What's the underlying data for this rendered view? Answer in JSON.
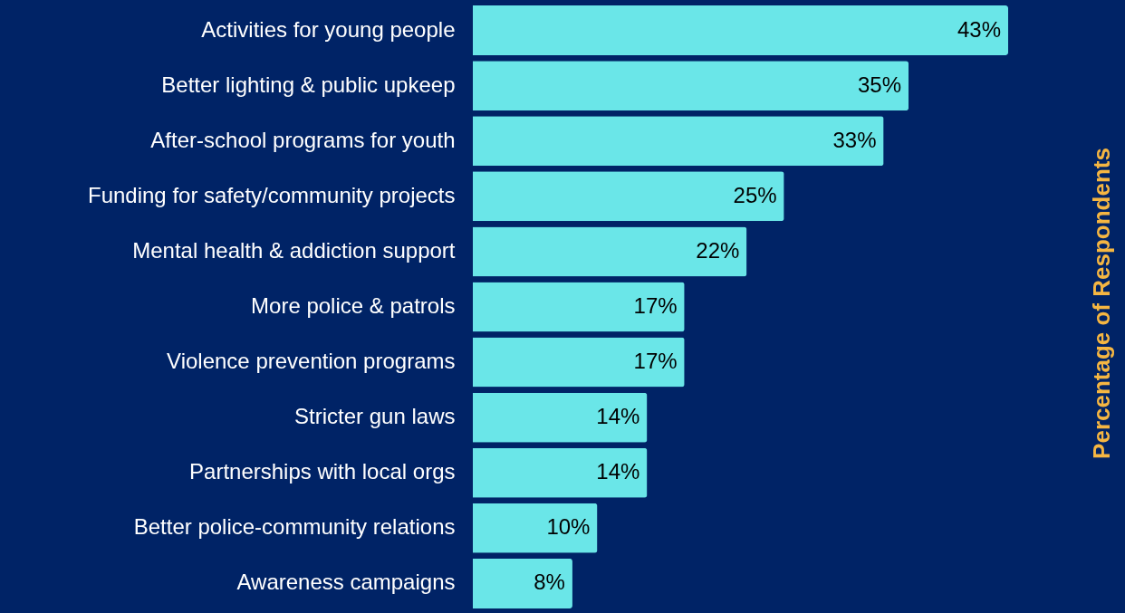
{
  "chart_data": {
    "type": "bar",
    "orientation": "horizontal",
    "relative": false,
    "y2label": "Percentage of Respondents",
    "categories": [
      "Activities for young people",
      "Better lighting & public upkeep",
      "After-school programs for youth",
      "Funding for safety/community projects",
      "Mental health & addiction support",
      "More police & patrols",
      "Violence prevention programs",
      "Stricter gun laws",
      "Partnerships with local orgs",
      "Better police-community relations",
      "Awareness campaigns"
    ],
    "values": [
      43,
      35,
      33,
      25,
      22,
      17,
      17,
      14,
      14,
      10,
      8
    ],
    "value_labels": [
      "43%",
      "35%",
      "33%",
      "25%",
      "22%",
      "17%",
      "17%",
      "14%",
      "14%",
      "10%",
      "8%"
    ],
    "color": "#6ae6e8",
    "grid": false
  }
}
